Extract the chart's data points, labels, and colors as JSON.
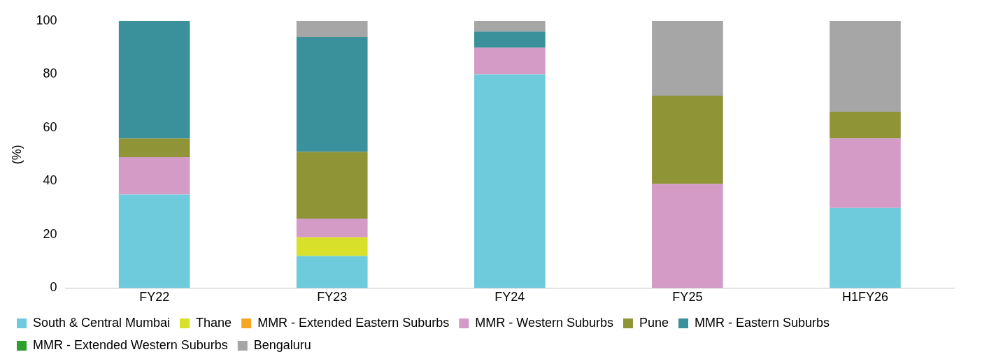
{
  "chart_data": {
    "type": "bar",
    "stacked": true,
    "ylabel": "(%)",
    "categories": [
      "FY22",
      "FY23",
      "FY24",
      "FY25",
      "H1FY26"
    ],
    "ylim": [
      0,
      100
    ],
    "yticks": [
      0,
      20,
      40,
      60,
      80,
      100
    ],
    "grid": false,
    "legend": "bottom",
    "series": [
      {
        "name": "South & Central Mumbai",
        "color": "#6ecbdc",
        "values": [
          35,
          12,
          80,
          0,
          30
        ]
      },
      {
        "name": "Thane",
        "color": "#d9e02a",
        "values": [
          0,
          7,
          0,
          0,
          0
        ]
      },
      {
        "name": "MMR - Extended Eastern Suburbs",
        "color": "#f5a623",
        "values": [
          0,
          0,
          0,
          0,
          0
        ]
      },
      {
        "name": "MMR - Western Suburbs",
        "color": "#d39bc6",
        "values": [
          14,
          7,
          10,
          39,
          26
        ]
      },
      {
        "name": "Pune",
        "color": "#8f9537",
        "values": [
          7,
          25,
          0,
          33,
          10
        ]
      },
      {
        "name": "MMR - Eastern Suburbs",
        "color": "#3a909b",
        "values": [
          44,
          43,
          6,
          0,
          0
        ]
      },
      {
        "name": "MMR - Extended Western Suburbs",
        "color": "#2ca02c",
        "values": [
          0,
          0,
          0,
          0,
          0
        ]
      },
      {
        "name": "Bengaluru",
        "color": "#a6a6a6",
        "values": [
          0,
          6,
          4,
          28,
          34
        ]
      }
    ]
  }
}
